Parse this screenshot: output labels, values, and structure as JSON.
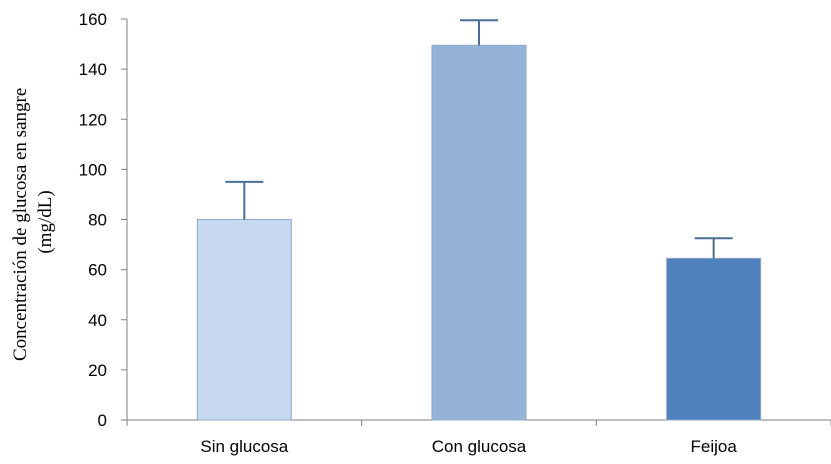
{
  "chart_data": {
    "type": "bar",
    "title": "",
    "xlabel": "",
    "ylabel_lines": [
      "Concentración de glucosa en sangre",
      "(mg/dL)"
    ],
    "categories": [
      "Sin glucosa",
      "Con glucosa",
      "Feijoa"
    ],
    "values": [
      80,
      149.5,
      64.5
    ],
    "error_upper": [
      95,
      159.5,
      72.5
    ],
    "bar_colors": [
      "#c6d9f1",
      "#95b3d7",
      "#4f81bd"
    ],
    "bar_border_color": "#8ea9c8",
    "error_bar_color": "#4a6f96",
    "ylim": [
      0,
      160
    ],
    "yticks": [
      0,
      20,
      40,
      60,
      80,
      100,
      120,
      140,
      160
    ],
    "grid": false,
    "legend": "none"
  }
}
